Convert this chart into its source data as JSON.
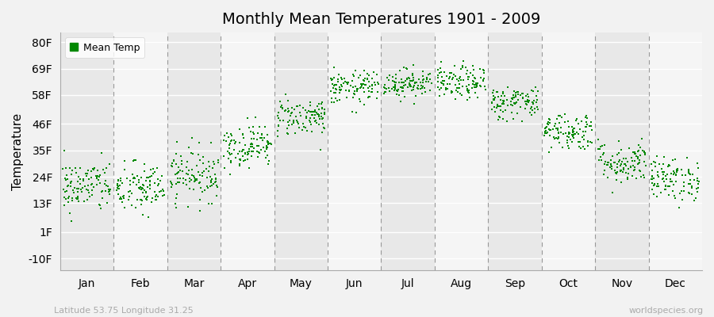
{
  "title": "Monthly Mean Temperatures 1901 - 2009",
  "ylabel": "Temperature",
  "subtitle_left": "Latitude 53.75 Longitude 31.25",
  "subtitle_right": "worldspecies.org",
  "legend_label": "Mean Temp",
  "dot_color": "#008800",
  "background_color": "#f2f2f2",
  "band_colors": [
    "#e8e8e8",
    "#f5f5f5"
  ],
  "months": [
    "Jan",
    "Feb",
    "Mar",
    "Apr",
    "May",
    "Jun",
    "Jul",
    "Aug",
    "Sep",
    "Oct",
    "Nov",
    "Dec"
  ],
  "ytick_labels": [
    "-10F",
    "1F",
    "13F",
    "24F",
    "35F",
    "46F",
    "58F",
    "69F",
    "80F"
  ],
  "ytick_values": [
    -10,
    1,
    13,
    24,
    35,
    46,
    58,
    69,
    80
  ],
  "ylim": [
    -15,
    84
  ],
  "xlim": [
    0,
    12
  ],
  "n_years": 109,
  "seed": 42,
  "monthly_mean_F": [
    20,
    19,
    25,
    37,
    49,
    61,
    63,
    63,
    55,
    43,
    30,
    23
  ],
  "monthly_std_F": [
    5.5,
    5.5,
    5.5,
    4.5,
    4.0,
    3.5,
    3.0,
    3.5,
    3.5,
    4.0,
    4.5,
    4.5
  ]
}
